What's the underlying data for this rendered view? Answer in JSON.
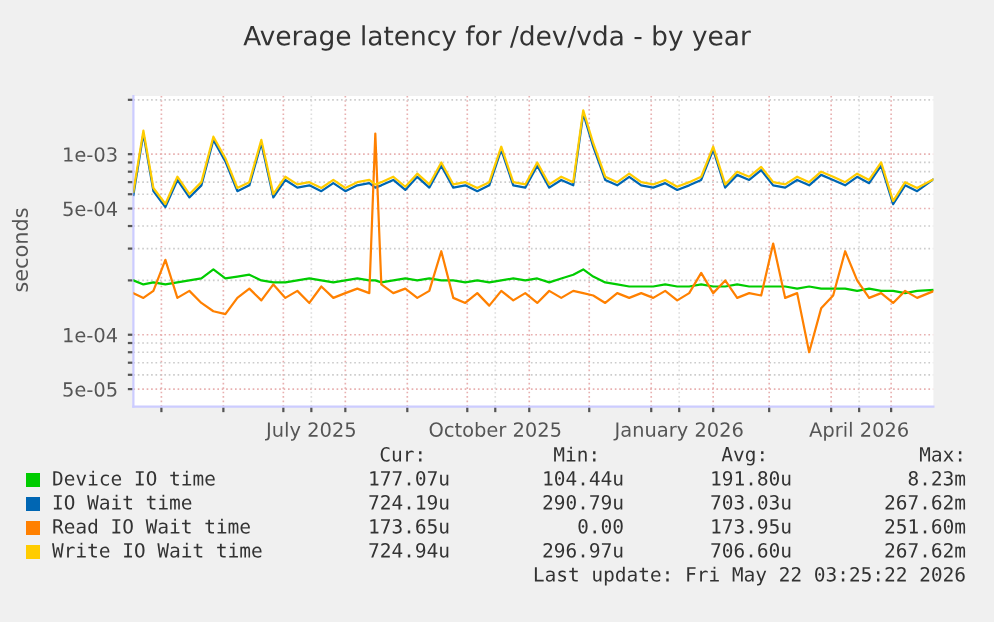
{
  "chart_data": {
    "type": "line",
    "title": "Average latency for /dev/vda - by year",
    "ylabel": "seconds",
    "x": [
      "2025-04-17",
      "2025-04-22",
      "2025-04-27",
      "2025-05-03",
      "2025-05-09",
      "2025-05-15",
      "2025-05-21",
      "2025-05-27",
      "2025-06-02",
      "2025-06-08",
      "2025-06-14",
      "2025-06-20",
      "2025-06-26",
      "2025-07-02",
      "2025-07-08",
      "2025-07-14",
      "2025-07-20",
      "2025-07-26",
      "2025-08-01",
      "2025-08-07",
      "2025-08-13",
      "2025-08-16",
      "2025-08-19",
      "2025-08-25",
      "2025-08-31",
      "2025-09-06",
      "2025-09-12",
      "2025-09-18",
      "2025-09-24",
      "2025-09-30",
      "2025-10-06",
      "2025-10-12",
      "2025-10-18",
      "2025-10-24",
      "2025-10-30",
      "2025-11-05",
      "2025-11-11",
      "2025-11-17",
      "2025-11-23",
      "2025-11-28",
      "2025-12-03",
      "2025-12-09",
      "2025-12-15",
      "2025-12-21",
      "2025-12-27",
      "2026-01-02",
      "2026-01-08",
      "2026-01-14",
      "2026-01-20",
      "2026-01-26",
      "2026-02-01",
      "2026-02-07",
      "2026-02-13",
      "2026-02-19",
      "2026-02-25",
      "2026-03-03",
      "2026-03-09",
      "2026-03-15",
      "2026-03-21",
      "2026-03-27",
      "2026-04-02",
      "2026-04-08",
      "2026-04-14",
      "2026-04-20",
      "2026-04-26",
      "2026-05-02",
      "2026-05-08",
      "2026-05-14",
      "2026-05-22"
    ],
    "series": [
      {
        "name": "Device IO time",
        "color": "#00cc00",
        "values": [
          0.0002,
          0.00019,
          0.000195,
          0.00019,
          0.000195,
          0.0002,
          0.000205,
          0.00023,
          0.000205,
          0.00021,
          0.000215,
          0.0002,
          0.000195,
          0.000195,
          0.0002,
          0.000205,
          0.0002,
          0.000195,
          0.0002,
          0.000205,
          0.0002,
          0.0002,
          0.000195,
          0.0002,
          0.000205,
          0.0002,
          0.000205,
          0.0002,
          0.0002,
          0.000195,
          0.0002,
          0.000195,
          0.0002,
          0.000205,
          0.0002,
          0.000205,
          0.000195,
          0.000205,
          0.000215,
          0.00023,
          0.00021,
          0.000195,
          0.00019,
          0.000185,
          0.000185,
          0.000185,
          0.00019,
          0.000185,
          0.000185,
          0.00019,
          0.000185,
          0.000185,
          0.00019,
          0.000185,
          0.000185,
          0.000185,
          0.000185,
          0.00018,
          0.000185,
          0.00018,
          0.00018,
          0.00018,
          0.000175,
          0.00018,
          0.000175,
          0.000175,
          0.00017,
          0.000175,
          0.000177
        ]
      },
      {
        "name": "IO Wait time",
        "color": "#0066b3",
        "values": [
          0.000595,
          0.0013,
          0.000624,
          0.000509,
          0.00072,
          0.000576,
          0.000672,
          0.0012,
          0.000912,
          0.000624,
          0.000672,
          0.00115,
          0.000576,
          0.00072,
          0.000653,
          0.000672,
          0.000624,
          0.000691,
          0.000624,
          0.000672,
          0.000691,
          0.000653,
          0.000672,
          0.00072,
          0.000634,
          0.000749,
          0.000653,
          0.000864,
          0.000653,
          0.000672,
          0.000624,
          0.000672,
          0.00106,
          0.000672,
          0.000653,
          0.000864,
          0.000653,
          0.00072,
          0.000672,
          0.00168,
          0.0011,
          0.00072,
          0.000672,
          0.000749,
          0.000672,
          0.000653,
          0.000691,
          0.000634,
          0.000672,
          0.00072,
          0.00106,
          0.000653,
          0.000768,
          0.00072,
          0.000816,
          0.000672,
          0.000653,
          0.00072,
          0.000672,
          0.000768,
          0.00072,
          0.000672,
          0.000749,
          0.000691,
          0.000864,
          0.000528,
          0.000672,
          0.000624,
          0.000724
        ]
      },
      {
        "name": "Read IO Wait time",
        "color": "#ff8000",
        "values": [
          0.00017,
          0.00016,
          0.000175,
          0.00026,
          0.00016,
          0.000175,
          0.00015,
          0.000135,
          0.00013,
          0.00016,
          0.00018,
          0.000155,
          0.00019,
          0.00016,
          0.000175,
          0.00015,
          0.000185,
          0.00016,
          0.00017,
          0.00018,
          0.00017,
          0.0013,
          0.00019,
          0.00017,
          0.00018,
          0.00016,
          0.000175,
          0.00029,
          0.00016,
          0.00015,
          0.00017,
          0.000145,
          0.000175,
          0.000155,
          0.00017,
          0.00015,
          0.000175,
          0.00016,
          0.000175,
          0.00017,
          0.000165,
          0.00015,
          0.00017,
          0.00016,
          0.00017,
          0.00016,
          0.000175,
          0.000155,
          0.00017,
          0.00022,
          0.00017,
          0.0002,
          0.00016,
          0.00017,
          0.000165,
          0.00032,
          0.00016,
          0.00017,
          8e-05,
          0.00014,
          0.000165,
          0.00029,
          0.0002,
          0.00016,
          0.00017,
          0.00015,
          0.000175,
          0.00016,
          0.000174
        ]
      },
      {
        "name": "Write IO Wait time",
        "color": "#ffcc00",
        "values": [
          0.00062,
          0.00135,
          0.00065,
          0.00053,
          0.00075,
          0.0006,
          0.0007,
          0.00125,
          0.00095,
          0.00065,
          0.0007,
          0.0012,
          0.0006,
          0.00075,
          0.00068,
          0.0007,
          0.00065,
          0.00072,
          0.00065,
          0.0007,
          0.00072,
          0.00068,
          0.0007,
          0.00075,
          0.00066,
          0.00078,
          0.00068,
          0.0009,
          0.00068,
          0.0007,
          0.00065,
          0.0007,
          0.0011,
          0.0007,
          0.00068,
          0.0009,
          0.00068,
          0.00075,
          0.0007,
          0.00175,
          0.00115,
          0.00075,
          0.0007,
          0.00078,
          0.0007,
          0.00068,
          0.00072,
          0.00066,
          0.0007,
          0.00075,
          0.0011,
          0.00068,
          0.0008,
          0.00075,
          0.00085,
          0.0007,
          0.00068,
          0.00075,
          0.0007,
          0.0008,
          0.00075,
          0.0007,
          0.00078,
          0.00072,
          0.0009,
          0.00055,
          0.0007,
          0.00065,
          0.000725
        ]
      }
    ],
    "log": "y",
    "ylim": [
      4e-05,
      0.0021
    ],
    "yticks": [
      {
        "value": 5e-05,
        "label": "5e-05"
      },
      {
        "value": 6e-05,
        "label": null
      },
      {
        "value": 7e-05,
        "label": null
      },
      {
        "value": 8e-05,
        "label": null
      },
      {
        "value": 9e-05,
        "label": null
      },
      {
        "value": 0.0001,
        "label": "1e-04"
      },
      {
        "value": 0.0002,
        "label": null
      },
      {
        "value": 0.0003,
        "label": null
      },
      {
        "value": 0.0004,
        "label": null
      },
      {
        "value": 0.0005,
        "label": "5e-04"
      },
      {
        "value": 0.0006,
        "label": null
      },
      {
        "value": 0.0007,
        "label": null
      },
      {
        "value": 0.0008,
        "label": null
      },
      {
        "value": 0.0009,
        "label": null
      },
      {
        "value": 0.001,
        "label": "1e-03"
      },
      {
        "value": 0.002,
        "label": null
      }
    ],
    "xlim": [
      "2025-04-17",
      "2026-05-22T03:25"
    ],
    "xticks": [
      {
        "value": "2025-05-01",
        "label": null
      },
      {
        "value": "2025-06-01",
        "label": null
      },
      {
        "value": "2025-07-01",
        "label": null
      },
      {
        "value": "2025-07-15",
        "label": "July 2025"
      },
      {
        "value": "2025-08-01",
        "label": null
      },
      {
        "value": "2025-09-01",
        "label": null
      },
      {
        "value": "2025-10-01",
        "label": null
      },
      {
        "value": "2025-10-15",
        "label": "October 2025"
      },
      {
        "value": "2025-11-01",
        "label": null
      },
      {
        "value": "2025-12-01",
        "label": null
      },
      {
        "value": "2026-01-01",
        "label": null
      },
      {
        "value": "2026-01-15",
        "label": "January 2026"
      },
      {
        "value": "2026-02-01",
        "label": null
      },
      {
        "value": "2026-03-01",
        "label": null
      },
      {
        "value": "2026-04-01",
        "label": null
      },
      {
        "value": "2026-04-15",
        "label": "April 2026"
      },
      {
        "value": "2026-05-01",
        "label": null
      }
    ],
    "grid": true,
    "legend": "bottom",
    "line_style": "solid",
    "marker": "none",
    "annotations": [
      "Cur:",
      "Min:",
      "Avg:",
      "Max:",
      "177.07u",
      "104.44u",
      "191.80u",
      "8.23m",
      "724.19u",
      "290.79u",
      "703.03u",
      "267.62m",
      "173.65u",
      "0.00",
      "173.95u",
      "251.60m",
      "724.94u",
      "296.97u",
      "706.60u",
      "267.62m",
      "Last update: Fri May 22 03:25:22 2026"
    ]
  }
}
